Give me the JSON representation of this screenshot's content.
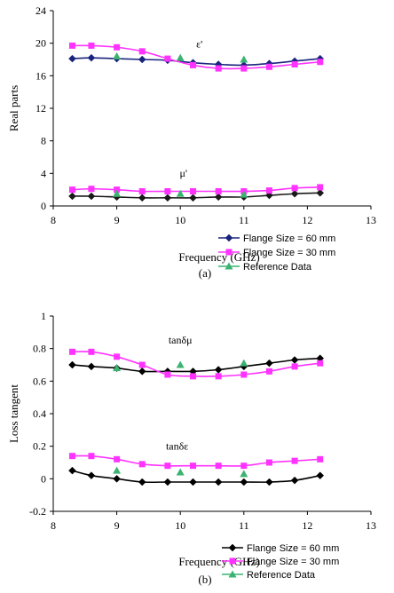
{
  "chart_data": [
    {
      "panel": "(a)",
      "type": "line",
      "xlabel": "Frequency (GHz)",
      "ylabel": "Real parts",
      "xlim": [
        8,
        13
      ],
      "ylim": [
        0,
        24
      ],
      "xticks": [
        8,
        9,
        10,
        11,
        12,
        13
      ],
      "yticks": [
        0,
        4,
        8,
        12,
        16,
        20,
        24
      ],
      "legend_position": "right-middle",
      "annotations": [
        {
          "text": "ε'",
          "x": 10.3,
          "y": 19.5
        },
        {
          "text": "μ'",
          "x": 10.05,
          "y": 3.6
        }
      ],
      "series": [
        {
          "name": "Flange Size = 60 mm",
          "color": "#1a237e",
          "marker": "diamond",
          "line": true,
          "x": [
            8.3,
            8.6,
            9.0,
            9.4,
            9.8,
            10.2,
            10.6,
            11.0,
            11.4,
            11.8,
            12.2
          ],
          "y": [
            18.1,
            18.2,
            18.1,
            18.0,
            17.9,
            17.6,
            17.4,
            17.3,
            17.5,
            17.8,
            18.1
          ]
        },
        {
          "name": "Flange Size = 60 mm",
          "color": "#1a1a1a",
          "marker": "diamond",
          "line": true,
          "legend": false,
          "x": [
            8.3,
            8.6,
            9.0,
            9.4,
            9.8,
            10.2,
            10.6,
            11.0,
            11.4,
            11.8,
            12.2
          ],
          "y": [
            1.2,
            1.2,
            1.1,
            1.0,
            1.0,
            1.0,
            1.1,
            1.1,
            1.3,
            1.5,
            1.6
          ]
        },
        {
          "name": "Flange Size = 30 mm",
          "color": "#ff33ff",
          "marker": "square",
          "line": true,
          "x": [
            8.3,
            8.6,
            9.0,
            9.4,
            9.8,
            10.2,
            10.6,
            11.0,
            11.4,
            11.8,
            12.2
          ],
          "y": [
            19.7,
            19.7,
            19.5,
            19.0,
            18.1,
            17.3,
            16.9,
            16.9,
            17.1,
            17.4,
            17.7
          ]
        },
        {
          "name": "Flange Size = 30 mm",
          "color": "#ff33ff",
          "marker": "square",
          "line": true,
          "legend": false,
          "x": [
            8.3,
            8.6,
            9.0,
            9.4,
            9.8,
            10.2,
            10.6,
            11.0,
            11.4,
            11.8,
            12.2
          ],
          "y": [
            2.0,
            2.1,
            2.0,
            1.8,
            1.8,
            1.8,
            1.8,
            1.8,
            1.9,
            2.2,
            2.3
          ]
        },
        {
          "name": "Reference Data",
          "color": "#3cb371",
          "marker": "triangle",
          "line": false,
          "x": [
            9.0,
            10.0,
            11.0,
            9.0,
            10.0,
            11.0
          ],
          "y": [
            18.4,
            18.2,
            18.0,
            1.5,
            1.5,
            1.4
          ]
        }
      ]
    },
    {
      "panel": "(b)",
      "type": "line",
      "xlabel": "Frequency (GHz)",
      "ylabel": "Loss tangent",
      "xlim": [
        8,
        13
      ],
      "ylim": [
        -0.2,
        1
      ],
      "xticks": [
        8,
        9,
        10,
        11,
        12,
        13
      ],
      "yticks": [
        -0.2,
        0,
        0.2,
        0.4,
        0.6,
        0.8,
        1
      ],
      "legend_position": "right-middle",
      "annotations": [
        {
          "text": "tanδμ",
          "x": 10.0,
          "y": 0.83
        },
        {
          "text": "tanδε",
          "x": 9.95,
          "y": 0.18
        }
      ],
      "series": [
        {
          "name": "Flange Size = 60 mm",
          "color": "#000000",
          "marker": "diamond",
          "line": true,
          "x": [
            8.3,
            8.6,
            9.0,
            9.4,
            9.8,
            10.2,
            10.6,
            11.0,
            11.4,
            11.8,
            12.2
          ],
          "y": [
            0.7,
            0.69,
            0.68,
            0.66,
            0.66,
            0.66,
            0.67,
            0.69,
            0.71,
            0.73,
            0.74
          ]
        },
        {
          "name": "Flange Size = 60 mm",
          "color": "#000000",
          "marker": "diamond",
          "line": true,
          "legend": false,
          "x": [
            8.3,
            8.6,
            9.0,
            9.4,
            9.8,
            10.2,
            10.6,
            11.0,
            11.4,
            11.8,
            12.2
          ],
          "y": [
            0.05,
            0.02,
            0.0,
            -0.02,
            -0.02,
            -0.02,
            -0.02,
            -0.02,
            -0.02,
            -0.01,
            0.02
          ]
        },
        {
          "name": "Flange Size = 30 mm",
          "color": "#ff33ff",
          "marker": "square",
          "line": true,
          "x": [
            8.3,
            8.6,
            9.0,
            9.4,
            9.8,
            10.2,
            10.6,
            11.0,
            11.4,
            11.8,
            12.2
          ],
          "y": [
            0.78,
            0.78,
            0.75,
            0.7,
            0.64,
            0.63,
            0.63,
            0.64,
            0.66,
            0.69,
            0.71
          ]
        },
        {
          "name": "Flange Size = 30 mm",
          "color": "#ff33ff",
          "marker": "square",
          "line": true,
          "legend": false,
          "x": [
            8.3,
            8.6,
            9.0,
            9.4,
            9.8,
            10.2,
            10.6,
            11.0,
            11.4,
            11.8,
            12.2
          ],
          "y": [
            0.14,
            0.14,
            0.12,
            0.09,
            0.08,
            0.08,
            0.08,
            0.08,
            0.1,
            0.11,
            0.12
          ]
        },
        {
          "name": "Reference Data",
          "color": "#3cb371",
          "marker": "triangle",
          "line": false,
          "x": [
            9.0,
            10.0,
            11.0,
            9.0,
            10.0,
            11.0
          ],
          "y": [
            0.68,
            0.7,
            0.71,
            0.05,
            0.04,
            0.03
          ]
        }
      ]
    }
  ]
}
